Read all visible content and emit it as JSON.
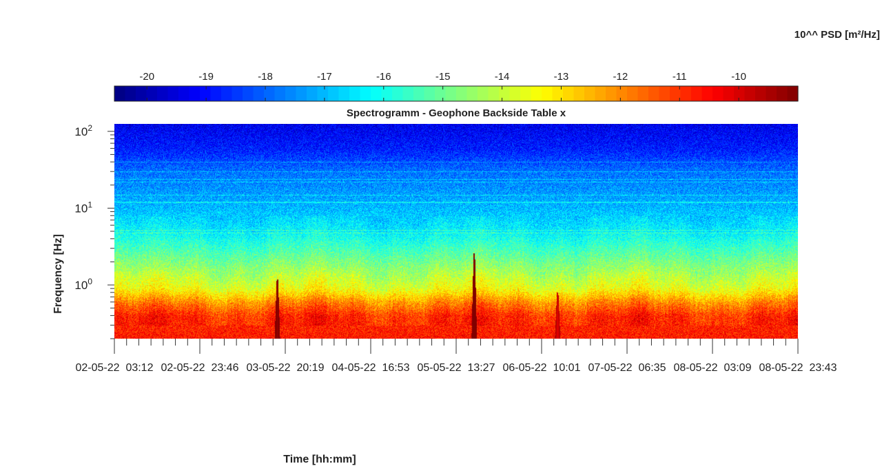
{
  "chart_data": {
    "type": "heatmap",
    "title": "Spectrogramm - Geophone Backside Table x",
    "xlabel": "Time [hh:mm]",
    "ylabel": "Frequency [Hz]",
    "colorbar": {
      "label": "10^^ PSD [m²/Hz]",
      "range": [
        -20.55,
        -9.0
      ],
      "ticks": [
        "-20",
        "-19",
        "-18",
        "-17",
        "-16",
        "-15",
        "-14",
        "-13",
        "-12",
        "-11",
        "-10"
      ],
      "colormap": "jet"
    },
    "x_ticks": [
      "02-05-22  03:12",
      "02-05-22  23:46",
      "03-05-22  20:19",
      "04-05-22  16:53",
      "05-05-22  13:27",
      "06-05-22  10:01",
      "07-05-22  06:35",
      "08-05-22  03:09",
      "08-05-22  23:43"
    ],
    "y_scale": "log",
    "y_range": [
      0.2,
      125
    ],
    "y_ticks": [
      {
        "base": "10",
        "exp": "0"
      },
      {
        "base": "10",
        "exp": "1"
      },
      {
        "base": "10",
        "exp": "2"
      }
    ],
    "psd_profile": [
      {
        "freq": 0.2,
        "log_psd": -10.7
      },
      {
        "freq": 0.4,
        "log_psd": -10.9
      },
      {
        "freq": 0.6,
        "log_psd": -12.0
      },
      {
        "freq": 0.9,
        "log_psd": -13.5
      },
      {
        "freq": 2,
        "log_psd": -14.8
      },
      {
        "freq": 5,
        "log_psd": -16.3
      },
      {
        "freq": 10,
        "log_psd": -17.0
      },
      {
        "freq": 30,
        "log_psd": -17.8
      },
      {
        "freq": 60,
        "log_psd": -18.8
      },
      {
        "freq": 125,
        "log_psd": -19.3
      }
    ],
    "events": [
      {
        "time_fraction": 0.238,
        "max_freq": 1.2,
        "log_psd": -9.3
      },
      {
        "time_fraction": 0.526,
        "max_freq": 2.6,
        "log_psd": -9.0
      },
      {
        "time_fraction": 0.648,
        "max_freq": 0.8,
        "log_psd": -10.2
      }
    ]
  }
}
